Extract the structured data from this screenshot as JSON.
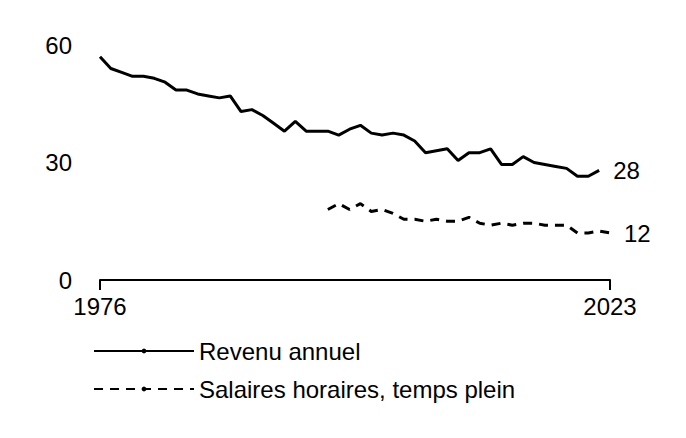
{
  "chart_data": {
    "type": "line",
    "x": [
      1976,
      1977,
      1978,
      1979,
      1980,
      1981,
      1982,
      1983,
      1984,
      1985,
      1986,
      1987,
      1988,
      1989,
      1990,
      1991,
      1992,
      1993,
      1994,
      1995,
      1996,
      1997,
      1998,
      1999,
      2000,
      2001,
      2002,
      2003,
      2004,
      2005,
      2006,
      2007,
      2008,
      2009,
      2010,
      2011,
      2012,
      2013,
      2014,
      2015,
      2016,
      2017,
      2018,
      2019,
      2020,
      2021,
      2022,
      2023
    ],
    "series": [
      {
        "name": "Revenu annuel",
        "color": "#000000",
        "line_style": "solid",
        "values": [
          57,
          54,
          53,
          52,
          52,
          51.5,
          50.5,
          48.5,
          48.5,
          47.5,
          47,
          46.5,
          47,
          43,
          43.5,
          42,
          40,
          38,
          40.5,
          38,
          38,
          38,
          37,
          38.5,
          39.5,
          37.5,
          37,
          37.5,
          37,
          35.5,
          32.5,
          33,
          33.5,
          30.5,
          32.5,
          32.5,
          33.5,
          29.5,
          29.5,
          31.5,
          30,
          29.5,
          29,
          28.5,
          26.5,
          26.5,
          28,
          null
        ]
      },
      {
        "name": "Salaires horaires, temps plein",
        "color": "#000000",
        "line_style": "dashed",
        "values": [
          null,
          null,
          null,
          null,
          null,
          null,
          null,
          null,
          null,
          null,
          null,
          null,
          null,
          null,
          null,
          null,
          null,
          null,
          null,
          null,
          null,
          18,
          19.5,
          18,
          19.5,
          17.5,
          18,
          17,
          15.5,
          15.5,
          15,
          15.5,
          15,
          15,
          16,
          14.5,
          14,
          14.5,
          14,
          14.5,
          14.5,
          14,
          14,
          14,
          12,
          12,
          12.5,
          12
        ]
      }
    ],
    "annotations": [
      {
        "text": "28",
        "series": "Revenu annuel",
        "x": 2022,
        "y": 28
      },
      {
        "text": "12",
        "series": "Salaires horaires, temps plein",
        "x": 2023,
        "y": 12
      }
    ],
    "xlim": [
      1976,
      2023
    ],
    "xticks": [
      1976,
      2023
    ],
    "ylim": [
      0,
      60
    ],
    "yticks": [
      0,
      30,
      60
    ],
    "grid": false,
    "legend": "bottom-left"
  }
}
